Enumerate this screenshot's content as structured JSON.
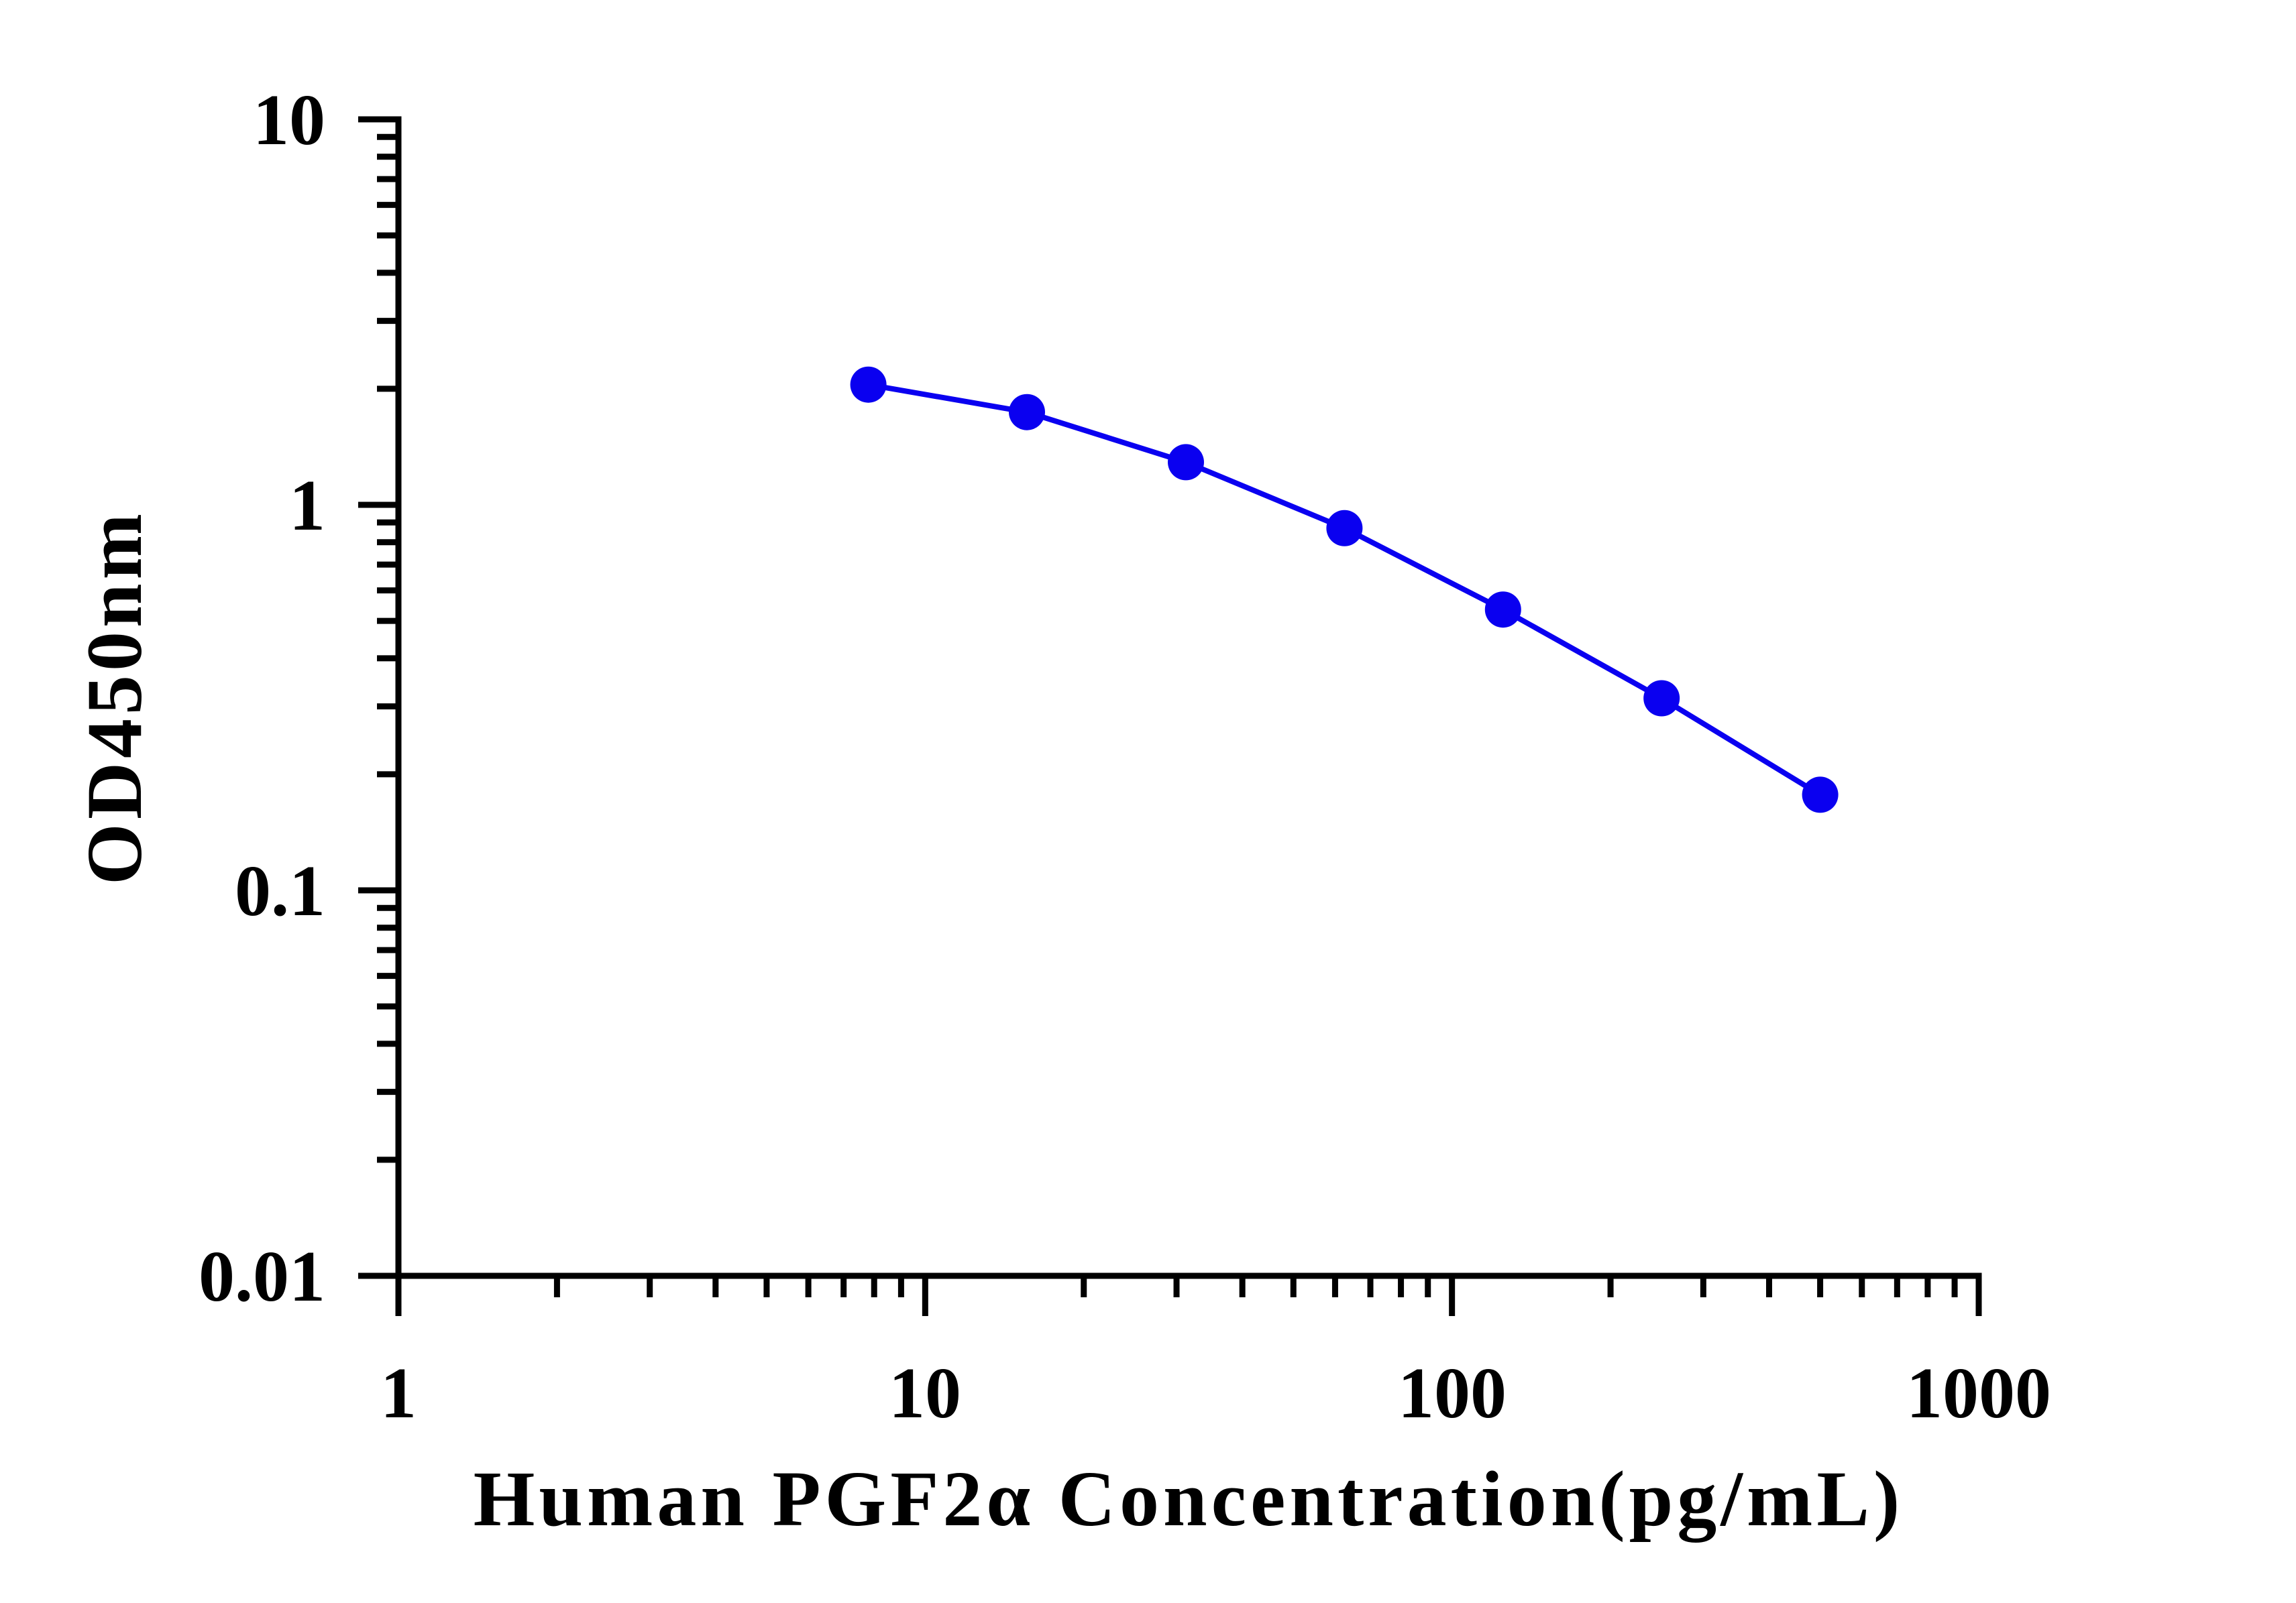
{
  "chart_data": {
    "type": "line",
    "xlabel": "Human PGF2α Concentration(pg/mL)",
    "ylabel": "OD450nm",
    "xscale": "log",
    "yscale": "log",
    "xlim": [
      1,
      1000
    ],
    "ylim": [
      0.01,
      10
    ],
    "x_ticks": [
      "1",
      "10",
      "100",
      "1000"
    ],
    "y_ticks": [
      "0.01",
      "0.1",
      "1",
      "10"
    ],
    "grid": false,
    "legend": "none",
    "series": [
      {
        "color": "#0a00f0",
        "marker": "circle",
        "x": [
          7.8,
          15.6,
          31.25,
          62.5,
          125,
          250,
          500
        ],
        "y": [
          2.05,
          1.74,
          1.29,
          0.87,
          0.535,
          0.315,
          0.177
        ]
      }
    ]
  }
}
